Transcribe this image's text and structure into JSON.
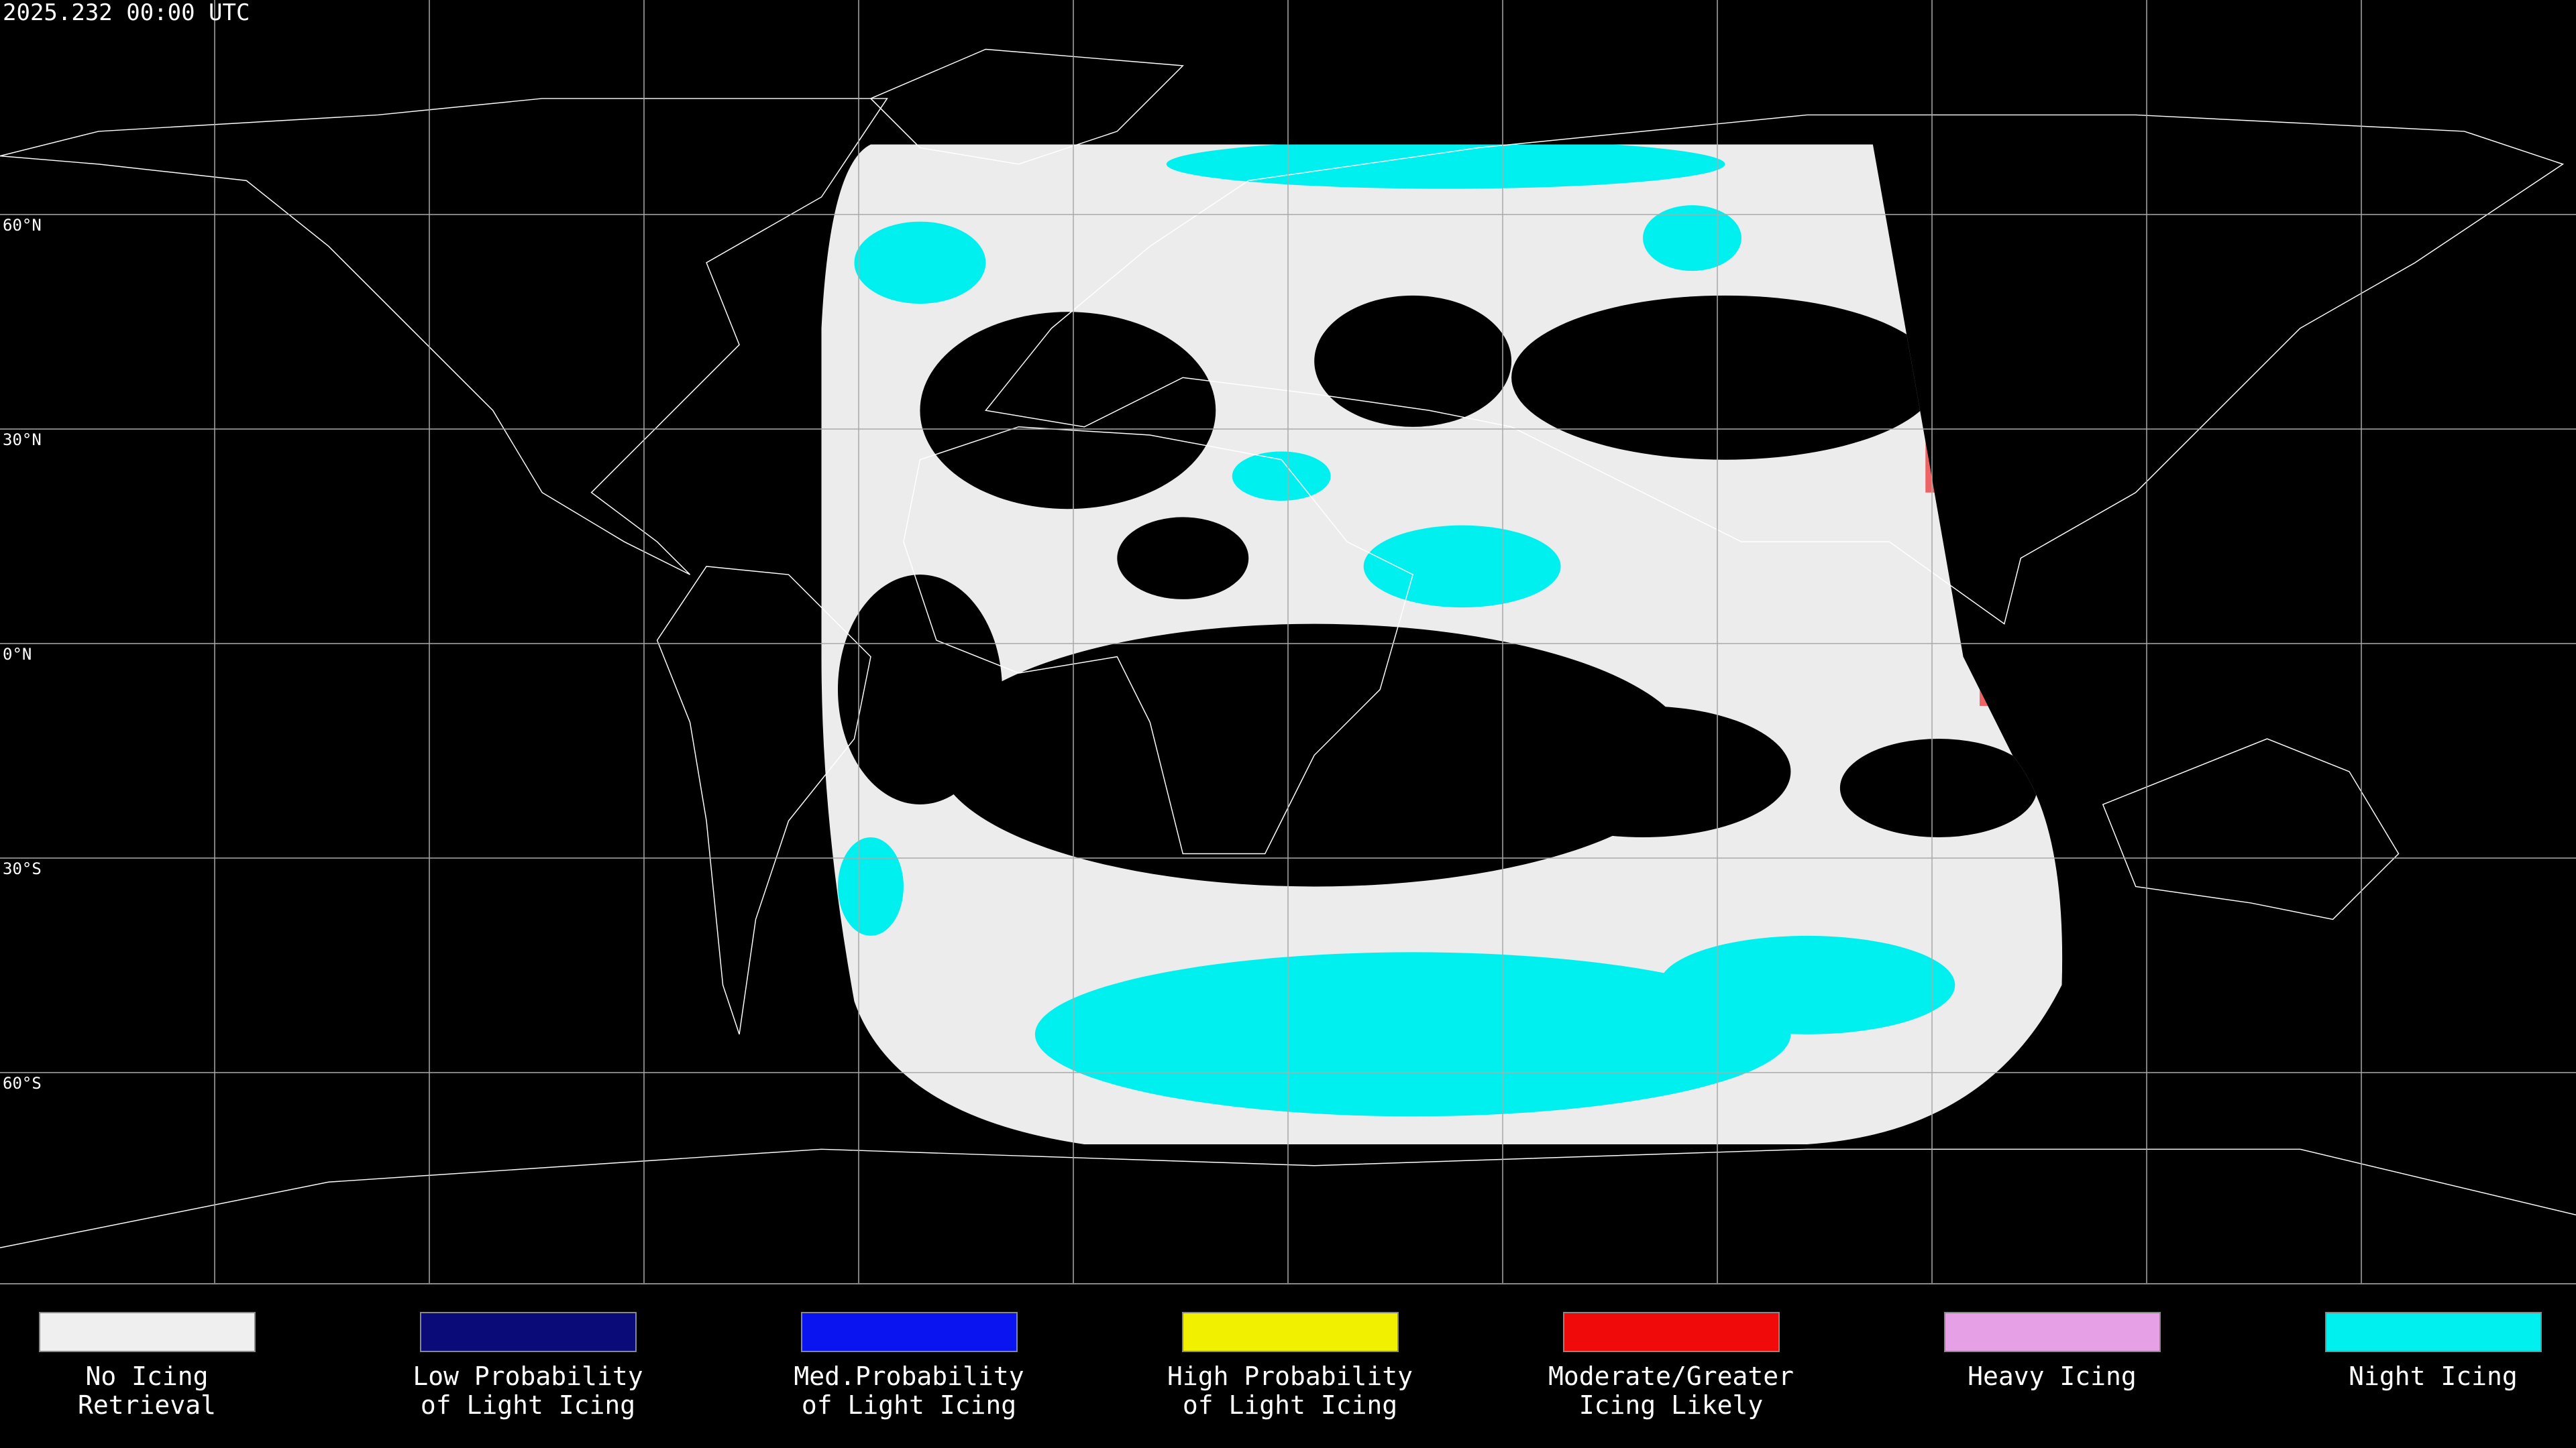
{
  "header": {
    "title": "2025.232 00:00 UTC"
  },
  "grid": {
    "lat_labels": [
      "60°N",
      "30°N",
      "0°N",
      "30°S",
      "60°S"
    ]
  },
  "legend": {
    "items": [
      {
        "lines": [
          "No Icing",
          "Retrieval"
        ],
        "color": "#efefef"
      },
      {
        "lines": [
          "Low Probability",
          "of Light Icing"
        ],
        "color": "#0a0a78"
      },
      {
        "lines": [
          "Med.Probability",
          "of Light Icing"
        ],
        "color": "#0a14f0"
      },
      {
        "lines": [
          "High Probability",
          "of Light Icing"
        ],
        "color": "#f0f000"
      },
      {
        "lines": [
          "Moderate/Greater",
          "Icing Likely"
        ],
        "color": "#f00a0a"
      },
      {
        "lines": [
          "Heavy Icing"
        ],
        "color": "#e6a0e6"
      },
      {
        "lines": [
          "Night Icing"
        ],
        "color": "#00f0f0"
      }
    ]
  }
}
